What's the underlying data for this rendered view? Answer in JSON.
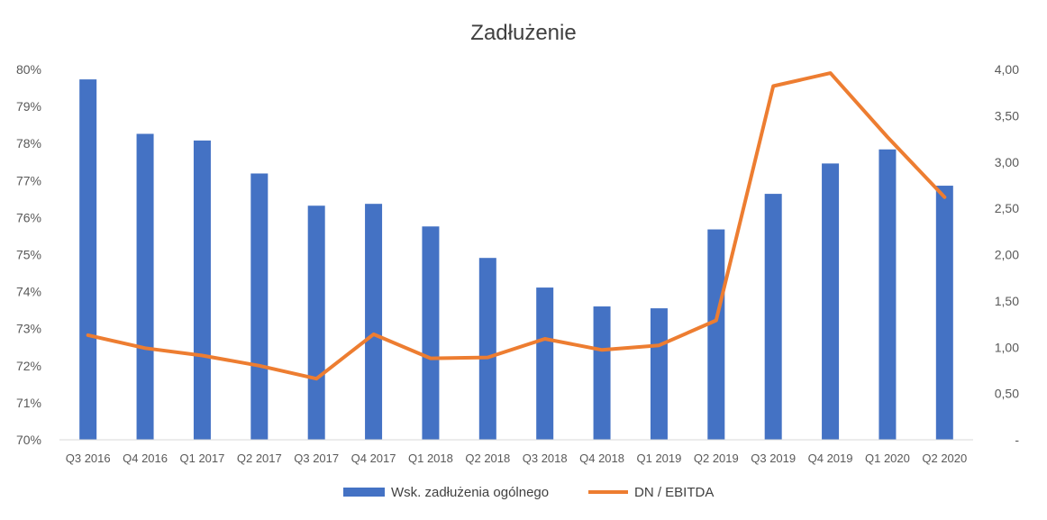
{
  "chart_data": {
    "type": "bar",
    "title": "Zadłużenie",
    "categories": [
      "Q3 2016",
      "Q4 2016",
      "Q1 2017",
      "Q2 2017",
      "Q3 2017",
      "Q4 2017",
      "Q1 2018",
      "Q2 2018",
      "Q3 2018",
      "Q4 2018",
      "Q1 2019",
      "Q2 2019",
      "Q3 2019",
      "Q4 2019",
      "Q1 2020",
      "Q2 2020"
    ],
    "series": [
      {
        "name": "Wsk. zadłużenia ogólnego",
        "type": "bar",
        "axis": "left",
        "color": "#4472C4",
        "values": [
          79.73,
          78.26,
          78.08,
          77.19,
          76.32,
          76.37,
          75.76,
          74.91,
          74.11,
          73.6,
          73.55,
          75.68,
          76.64,
          77.46,
          77.84,
          76.86
        ]
      },
      {
        "name": "DN / EBITDA",
        "type": "line",
        "axis": "right",
        "color": "#ED7D31",
        "values": [
          1.13,
          0.99,
          0.91,
          0.8,
          0.66,
          1.14,
          0.88,
          0.89,
          1.09,
          0.97,
          1.02,
          1.29,
          3.82,
          3.96,
          3.27,
          2.62
        ]
      }
    ],
    "y_left": {
      "ylim": [
        70,
        80
      ],
      "ticks": [
        "70%",
        "71%",
        "72%",
        "73%",
        "74%",
        "75%",
        "76%",
        "77%",
        "78%",
        "79%",
        "80%"
      ]
    },
    "y_right": {
      "ylim": [
        0,
        4
      ],
      "ticks": [
        "-",
        "0,50",
        "1,00",
        "1,50",
        "2,00",
        "2,50",
        "3,00",
        "3,50",
        "4,00"
      ]
    },
    "grid": false,
    "legend": "bottom"
  }
}
